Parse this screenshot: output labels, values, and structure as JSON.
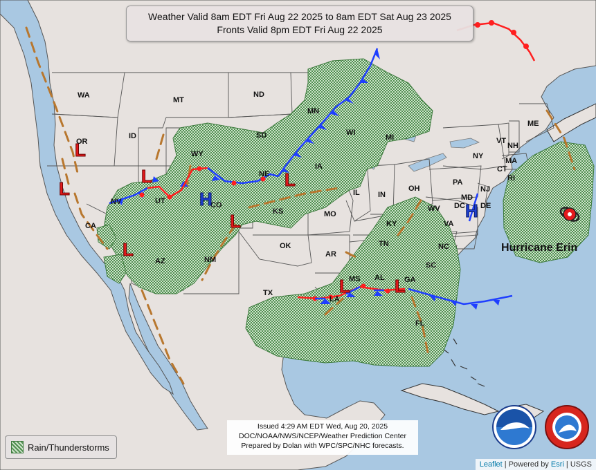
{
  "title": {
    "line1": "Weather Valid 8am EDT Fri Aug 22 2025 to 8am EDT Sat Aug 23 2025",
    "line2": "Fronts Valid 8pm EDT Fri Aug 22 2025"
  },
  "issued": {
    "line1": "Issued  4:29 AM EDT Wed, Aug 20, 2025",
    "line2": "DOC/NOAA/NWS/NCEP/Weather Prediction Center",
    "line3": "Prepared by Dolan with WPC/SPC/NHC forecasts."
  },
  "legend": {
    "label": "Rain/Thunderstorms"
  },
  "attribution": {
    "leaflet": "Leaflet",
    "powered_by": "Powered by",
    "esri": "Esri",
    "usgs": "USGS"
  },
  "hurricane": {
    "name": "Hurricane Erin"
  },
  "pressure_symbols": {
    "low": "L",
    "high": "H"
  },
  "state_labels": [
    {
      "name": "WA"
    },
    {
      "name": "OR"
    },
    {
      "name": "CA"
    },
    {
      "name": "NV"
    },
    {
      "name": "ID"
    },
    {
      "name": "MT"
    },
    {
      "name": "WY"
    },
    {
      "name": "UT"
    },
    {
      "name": "CO"
    },
    {
      "name": "AZ"
    },
    {
      "name": "NM"
    },
    {
      "name": "ND"
    },
    {
      "name": "SD"
    },
    {
      "name": "NE"
    },
    {
      "name": "KS"
    },
    {
      "name": "OK"
    },
    {
      "name": "TX"
    },
    {
      "name": "MN"
    },
    {
      "name": "IA"
    },
    {
      "name": "MO"
    },
    {
      "name": "AR"
    },
    {
      "name": "LA"
    },
    {
      "name": "WI"
    },
    {
      "name": "IL"
    },
    {
      "name": "MI"
    },
    {
      "name": "IN"
    },
    {
      "name": "OH"
    },
    {
      "name": "KY"
    },
    {
      "name": "TN"
    },
    {
      "name": "MS"
    },
    {
      "name": "AL"
    },
    {
      "name": "GA"
    },
    {
      "name": "FL"
    },
    {
      "name": "SC"
    },
    {
      "name": "NC"
    },
    {
      "name": "VA"
    },
    {
      "name": "WV"
    },
    {
      "name": "PA"
    },
    {
      "name": "NY"
    },
    {
      "name": "VT"
    },
    {
      "name": "NH"
    },
    {
      "name": "ME"
    },
    {
      "name": "MA"
    },
    {
      "name": "CT"
    },
    {
      "name": "RI"
    },
    {
      "name": "NJ"
    },
    {
      "name": "DE"
    },
    {
      "name": "MD"
    },
    {
      "name": "DC"
    }
  ],
  "colors": {
    "water": "#a9c8e2",
    "land": "#e7e2df",
    "rain": "#5e9a5e",
    "cold_front": "#1f3fff",
    "warm_front": "#ff1f1f",
    "trough": "#b8772e",
    "low_symbol": "#e31a1c",
    "high_symbol": "#1f3fcc"
  },
  "zoom_controls": {
    "in": "+",
    "out": "−"
  }
}
